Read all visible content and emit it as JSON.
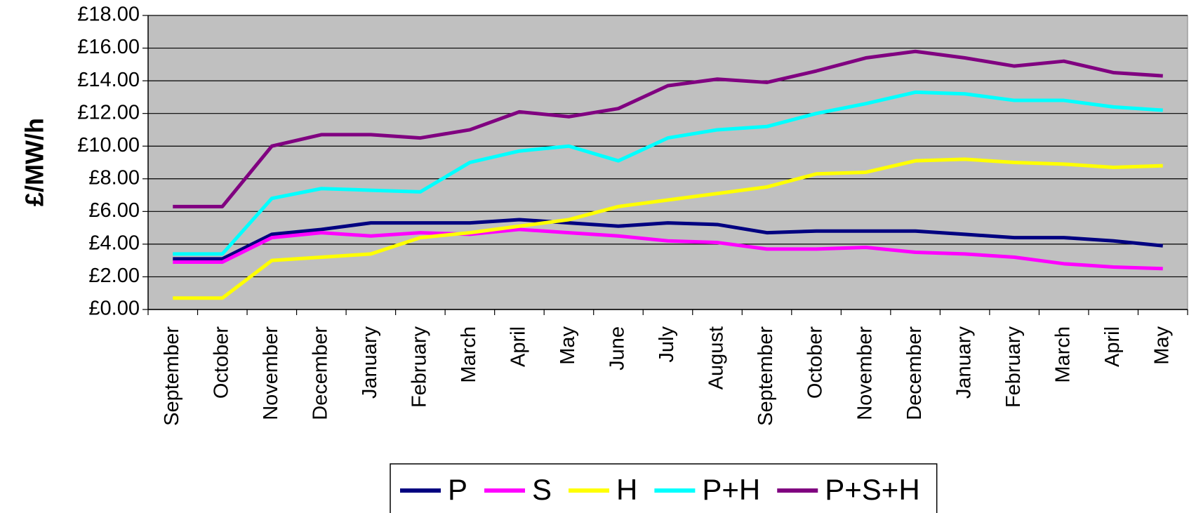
{
  "chart_data": {
    "type": "line",
    "y_label": "£/MW/h",
    "categories": [
      "September",
      "October",
      "November",
      "December",
      "January",
      "February",
      "March",
      "April",
      "May",
      "June",
      "July",
      "August",
      "September",
      "October",
      "November",
      "December",
      "January",
      "February",
      "March",
      "April",
      "May"
    ],
    "series": [
      {
        "name": "P",
        "color": "#000080",
        "values": [
          3.1,
          3.1,
          4.6,
          4.9,
          5.3,
          5.3,
          5.3,
          5.5,
          5.3,
          5.1,
          5.3,
          5.2,
          4.7,
          4.8,
          4.8,
          4.8,
          4.6,
          4.4,
          4.4,
          4.2,
          3.9
        ]
      },
      {
        "name": "S",
        "color": "#ff00ff",
        "values": [
          2.9,
          2.9,
          4.4,
          4.7,
          4.5,
          4.7,
          4.6,
          4.9,
          4.7,
          4.5,
          4.2,
          4.1,
          3.7,
          3.7,
          3.8,
          3.5,
          3.4,
          3.2,
          2.8,
          2.6,
          2.5
        ]
      },
      {
        "name": "H",
        "color": "#ffff00",
        "values": [
          0.7,
          0.7,
          3.0,
          3.2,
          3.4,
          4.4,
          4.7,
          5.1,
          5.5,
          6.3,
          6.7,
          7.1,
          7.5,
          8.3,
          8.4,
          9.1,
          9.2,
          9.0,
          8.9,
          8.7,
          8.8
        ]
      },
      {
        "name": "P+H",
        "color": "#00ffff",
        "values": [
          3.4,
          3.4,
          6.8,
          7.4,
          7.3,
          7.2,
          9.0,
          9.7,
          10.0,
          9.1,
          10.5,
          11.0,
          11.2,
          12.0,
          12.6,
          13.3,
          13.2,
          12.8,
          12.8,
          12.4,
          12.2
        ]
      },
      {
        "name": "P+S+H",
        "color": "#800080",
        "values": [
          6.3,
          6.3,
          10.0,
          10.7,
          10.7,
          10.5,
          11.0,
          12.1,
          11.8,
          12.3,
          13.7,
          14.1,
          13.9,
          14.6,
          15.4,
          15.8,
          15.4,
          14.9,
          15.2,
          14.5,
          14.3
        ]
      }
    ],
    "ylim": [
      0,
      18
    ],
    "yticks": [
      {
        "value": 0,
        "label": "£0.00"
      },
      {
        "value": 2,
        "label": "£2.00"
      },
      {
        "value": 4,
        "label": "£4.00"
      },
      {
        "value": 6,
        "label": "£6.00"
      },
      {
        "value": 8,
        "label": "£8.00"
      },
      {
        "value": 10,
        "label": "£10.00"
      },
      {
        "value": 12,
        "label": "£12.00"
      },
      {
        "value": 14,
        "label": "£14.00"
      },
      {
        "value": 16,
        "label": "£16.00"
      },
      {
        "value": 18,
        "label": "£18.00"
      }
    ],
    "grid": true,
    "plot_background": "#c0c0c0",
    "legend": "bottom"
  }
}
